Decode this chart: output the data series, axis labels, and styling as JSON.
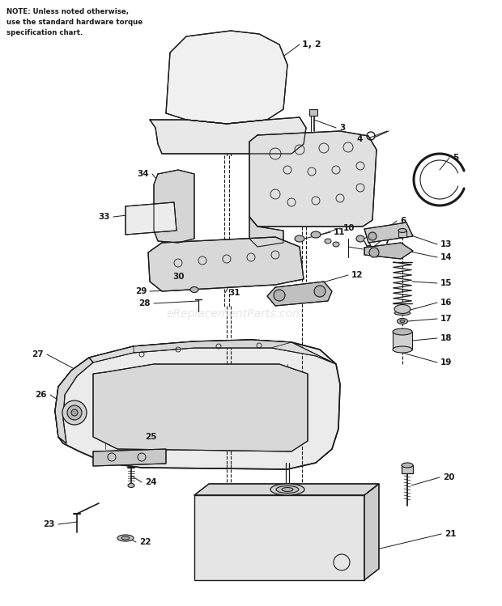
{
  "bg_color": "#ffffff",
  "line_color": "#1a1a1a",
  "note_text": "NOTE: Unless noted otherwise,\nuse the standard hardware torque\nspecification chart.",
  "watermark": "eReplacementParts.com"
}
